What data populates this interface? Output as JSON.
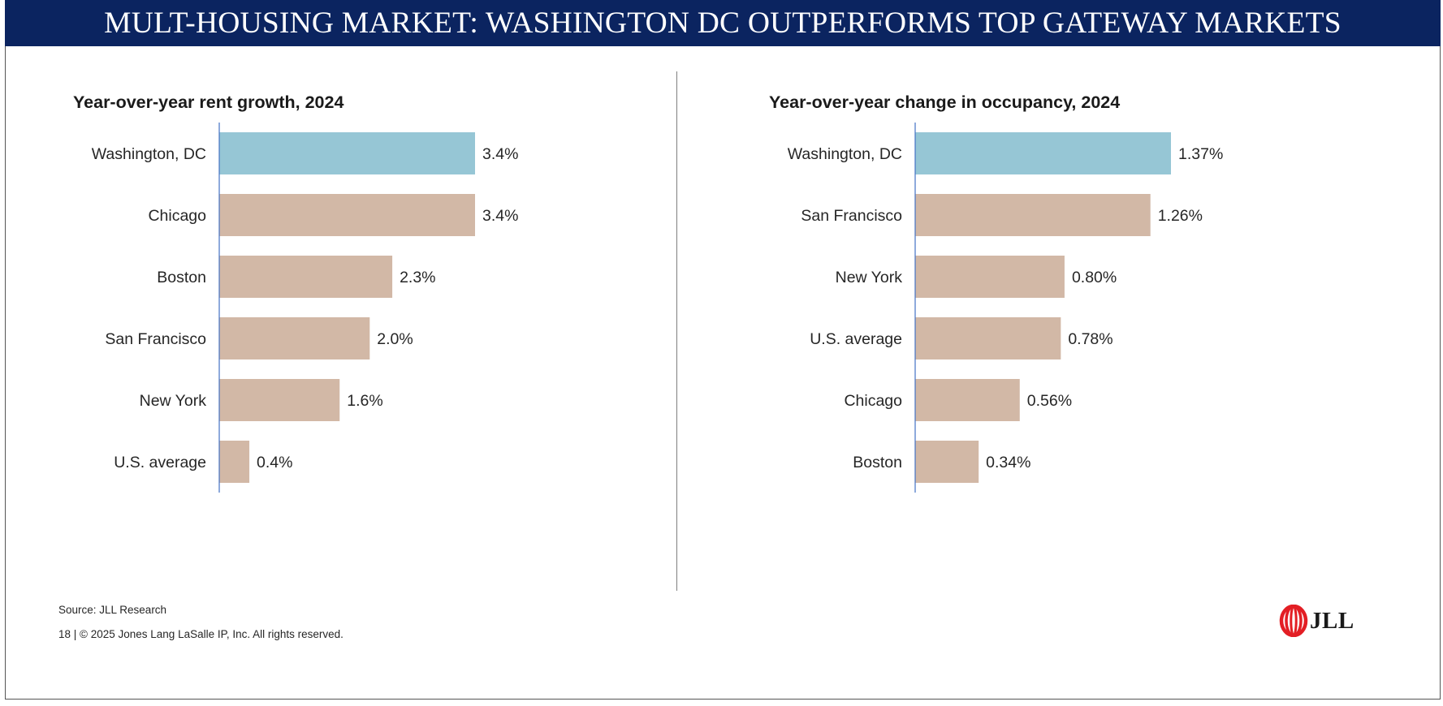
{
  "page": {
    "title": "MULT-HOUSING MARKET:  WASHINGTON DC OUTPERFORMS TOP GATEWAY MARKETS",
    "source": "Source: JLL Research",
    "footer": "18  |  © 2025 Jones Lang LaSalle IP, Inc. All rights reserved.",
    "logo_text": "JLL"
  },
  "colors": {
    "highlight": "#96c6d5",
    "bar": "#d2b8a6",
    "axis": "#4472c4",
    "banner": "#0b2460",
    "logo": "#e31e24"
  },
  "chart_data": [
    {
      "type": "bar",
      "orientation": "horizontal",
      "title": "Year-over-year rent growth, 2024",
      "categories": [
        "Washington, DC",
        "Chicago",
        "Boston",
        "San Francisco",
        "New York",
        "U.S. average"
      ],
      "values": [
        3.4,
        3.4,
        2.3,
        2.0,
        1.6,
        0.4
      ],
      "value_labels": [
        "3.4%",
        "3.4%",
        "2.3%",
        "2.0%",
        "1.6%",
        "0.4%"
      ],
      "highlight_index": 0,
      "xlim": [
        0,
        3.4
      ],
      "unit": "%",
      "grid": false,
      "legend": "none"
    },
    {
      "type": "bar",
      "orientation": "horizontal",
      "title": "Year-over-year change in occupancy, 2024",
      "categories": [
        "Washington, DC",
        "San Francisco",
        "New York",
        "U.S. average",
        "Chicago",
        "Boston"
      ],
      "values": [
        1.37,
        1.26,
        0.8,
        0.78,
        0.56,
        0.34
      ],
      "value_labels": [
        "1.37%",
        "1.26%",
        "0.80%",
        "0.78%",
        "0.56%",
        "0.34%"
      ],
      "highlight_index": 0,
      "xlim": [
        0,
        1.37
      ],
      "unit": "%",
      "grid": false,
      "legend": "none"
    }
  ]
}
